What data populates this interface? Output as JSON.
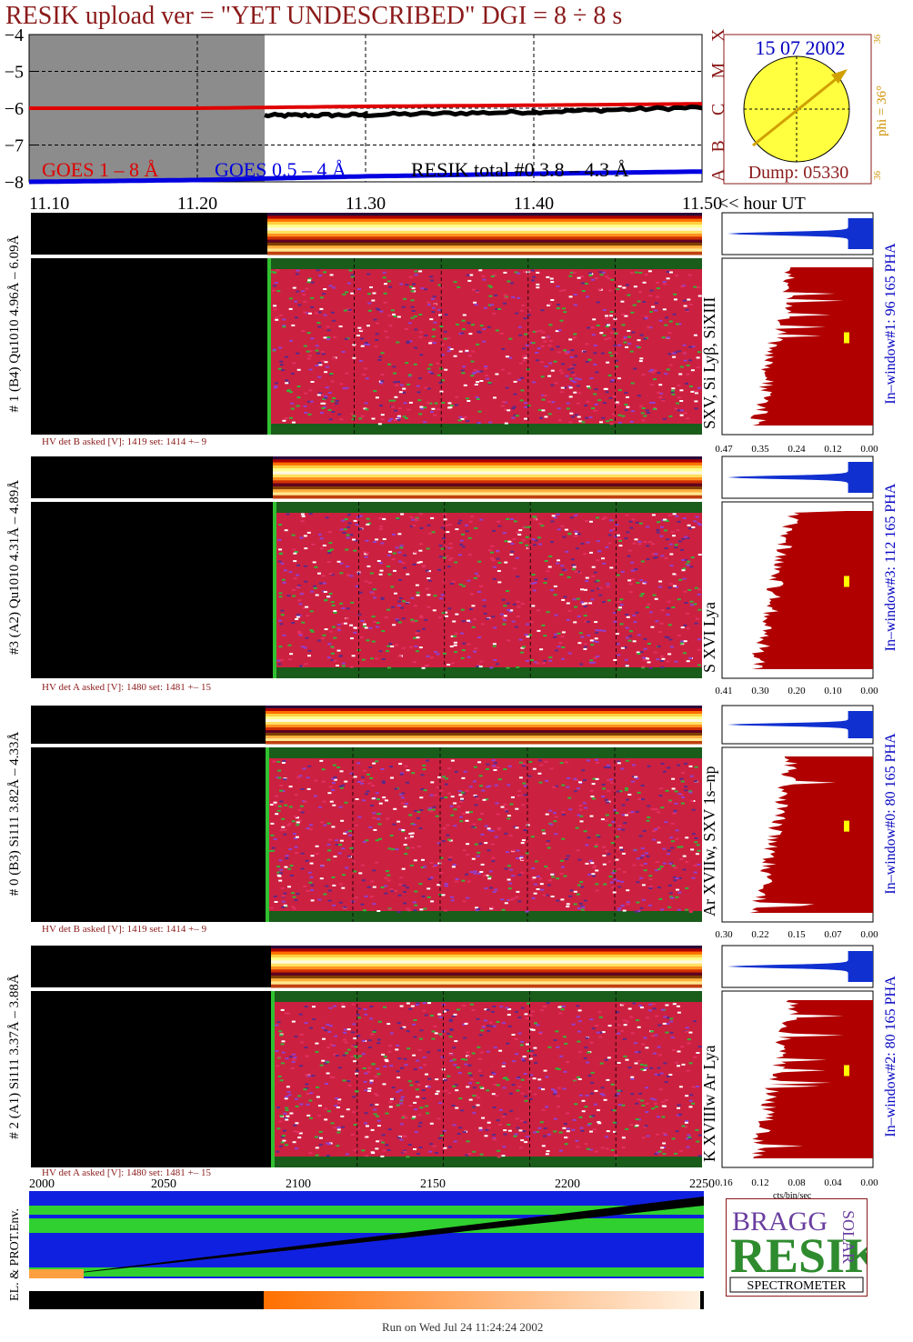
{
  "title": "RESIK upload ver = \"YET UNDESCRIBED\"  DGI =   8 ÷   8 s",
  "footer": "Run on Wed Jul 24 11:24:24 2002",
  "goes_panel": {
    "yticks": [
      "−4",
      "−5",
      "−6",
      "−7",
      "−8"
    ],
    "legend": [
      {
        "text": "GOES 1 – 8 Å",
        "color": "#e00000"
      },
      {
        "text": "GOES 0.5 – 4 Å",
        "color": "#0000e0"
      },
      {
        "text": "RESIK total #0  3.8 – 4.3 Å",
        "color": "#000000"
      }
    ],
    "class_letters": [
      "X",
      "M",
      "C",
      "B",
      "A"
    ],
    "xticks": [
      "11.10",
      "11.20",
      "11.30",
      "11.40",
      "11.50"
    ],
    "xlabel": "<< hour UT"
  },
  "sun_panel": {
    "date": "15 07 2002",
    "dump": "Dump: 05330",
    "phi": "phi = 36°",
    "small_top": "36",
    "small_bottom": "36"
  },
  "channels": [
    {
      "label": "# 1 (B4) Qu1010 4.96Å – 6.09Å",
      "lines": "SXV, Si Lyβ, SiXIII",
      "window": "In–window#1:  96 165  PHA",
      "hv": "HV det B asked [V]:  1419 set:  1414  +–   9",
      "xticks": [
        "0.47",
        "0.35",
        "0.24",
        "0.12",
        "0.00"
      ]
    },
    {
      "label": "#3 (A2) Qu1010  4.31Å – 4.89Å",
      "lines": "S XVI Lya",
      "window": "In–window#3:  112 165  PHA",
      "hv": "HV det A asked [V]:  1480 set:  1481  +–   15",
      "xticks": [
        "0.41",
        "0.30",
        "0.20",
        "0.10",
        "0.00"
      ]
    },
    {
      "label": "# 0 (B3) Si111  3.82Å – 4.33Å",
      "lines": "Ar XVIIw,  SXV 1s–np",
      "window": "In–window#0:   80 165  PHA",
      "hv": "HV det B asked [V]:  1419 set:  1414  +–   9",
      "xticks": [
        "0.30",
        "0.22",
        "0.15",
        "0.07",
        "0.00"
      ]
    },
    {
      "label": "# 2 (A1) Si111  3.37Å – 3.88Å",
      "lines": "K XVIIIw  Ar Lya",
      "window": "In–window#2:   80 165  PHA",
      "hv": "HV det A asked [V]:  1480 set:  1481  +–   15",
      "xticks": [
        "0.16",
        "0.12",
        "0.08",
        "0.04",
        "0.00"
      ],
      "xlabel": "cts/bin/sec"
    }
  ],
  "env_panel": {
    "ylabel": "EL. & PROT.Env.",
    "xticks": [
      "2000",
      "2050",
      "2100",
      "2150",
      "2200",
      "2250"
    ]
  },
  "logo": {
    "bragg": "BRAGG",
    "resik": "RESIK",
    "solar": "SOLAR",
    "spectrometer": "SPECTROMETER"
  },
  "chart_data": {
    "type": "line",
    "title": "RESIK upload ver = \"YET UNDESCRIBED\"  DGI =   8 ÷   8 s",
    "xlabel": "<< hour UT",
    "xlim": [
      11.1,
      11.5
    ],
    "ylim": [
      -8,
      -4
    ],
    "series": [
      {
        "name": "GOES 1 – 8 Å",
        "x": [
          11.1,
          11.2,
          11.3,
          11.4,
          11.5
        ],
        "values": [
          -6.0,
          -6.0,
          -5.95,
          -5.92,
          -5.88
        ]
      },
      {
        "name": "GOES 0.5 – 4 Å",
        "x": [
          11.1,
          11.2,
          11.3,
          11.4,
          11.5
        ],
        "values": [
          -8.0,
          -7.95,
          -7.85,
          -7.78,
          -7.72
        ]
      },
      {
        "name": "RESIK total #0  3.8 – 4.3 Å",
        "x": [
          11.24,
          11.3,
          11.4,
          11.5
        ],
        "values": [
          -6.2,
          -6.18,
          -6.1,
          -5.98
        ]
      }
    ],
    "grid": true
  }
}
